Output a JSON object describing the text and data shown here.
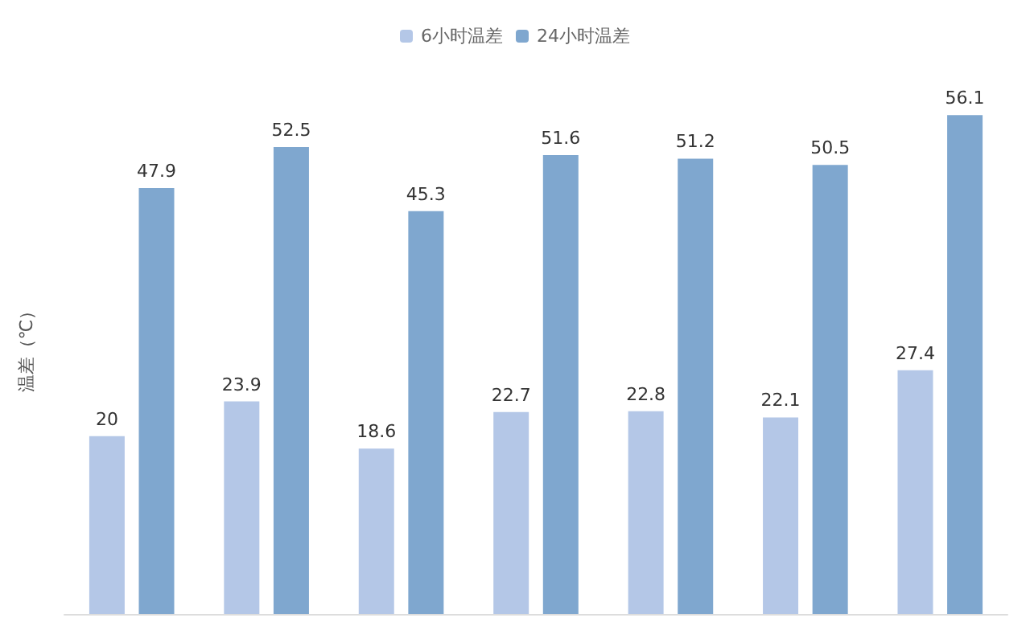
{
  "chart_data": {
    "type": "bar",
    "ylabel": "温差（℃）",
    "categories": [
      null,
      null,
      null,
      null,
      null,
      null,
      null
    ],
    "series": [
      {
        "name": "6小时温差",
        "color": "#b4c7e7",
        "values": [
          20,
          23.9,
          18.6,
          22.7,
          22.8,
          22.1,
          27.4
        ]
      },
      {
        "name": "24小时温差",
        "color": "#7fa7cf",
        "values": [
          47.9,
          52.5,
          45.3,
          51.6,
          51.2,
          50.5,
          56.1
        ]
      }
    ],
    "data_labels": true,
    "legend": "top",
    "grid": false
  }
}
